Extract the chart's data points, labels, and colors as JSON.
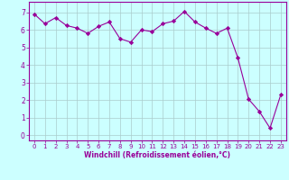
{
  "x": [
    0,
    1,
    2,
    3,
    4,
    5,
    6,
    7,
    8,
    9,
    10,
    11,
    12,
    13,
    14,
    15,
    16,
    17,
    18,
    19,
    20,
    21,
    22,
    23
  ],
  "y": [
    6.9,
    6.35,
    6.7,
    6.25,
    6.1,
    5.8,
    6.2,
    6.45,
    5.5,
    5.3,
    6.0,
    5.9,
    6.35,
    6.5,
    7.05,
    6.45,
    6.1,
    5.8,
    6.1,
    4.4,
    2.05,
    1.35,
    0.4,
    2.3
  ],
  "line_color": "#990099",
  "marker": "D",
  "marker_size": 2.2,
  "bg_color": "#ccffff",
  "grid_color": "#aacccc",
  "xlabel": "Windchill (Refroidissement éolien,°C)",
  "xlabel_color": "#990099",
  "tick_color": "#990099",
  "spine_color": "#990099",
  "xlim": [
    -0.5,
    23.5
  ],
  "ylim": [
    -0.3,
    7.6
  ],
  "yticks": [
    0,
    1,
    2,
    3,
    4,
    5,
    6,
    7
  ],
  "xticks": [
    0,
    1,
    2,
    3,
    4,
    5,
    6,
    7,
    8,
    9,
    10,
    11,
    12,
    13,
    14,
    15,
    16,
    17,
    18,
    19,
    20,
    21,
    22,
    23
  ],
  "figsize": [
    3.2,
    2.0
  ],
  "dpi": 100
}
